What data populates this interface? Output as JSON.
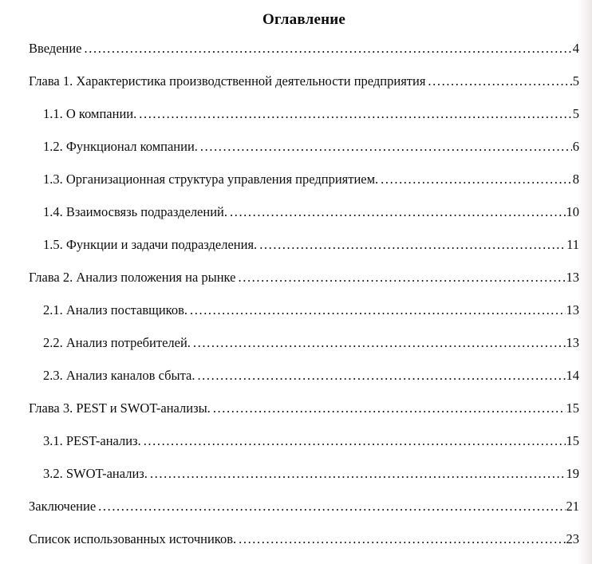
{
  "title": "Оглавление",
  "entries": [
    {
      "label": "Введение",
      "page": "4",
      "level": 0
    },
    {
      "label": "Глава 1. Характеристика производственной деятельности предприятия",
      "page": "5",
      "level": 0
    },
    {
      "label": "1.1. О компании.",
      "page": "5",
      "level": 1
    },
    {
      "label": "1.2. Функционал компании.",
      "page": "6",
      "level": 1
    },
    {
      "label": "1.3. Организационная структура управления предприятием.",
      "page": "8",
      "level": 1
    },
    {
      "label": "1.4. Взаимосвязь подразделений.",
      "page": "10",
      "level": 1
    },
    {
      "label": "1.5. Функции и задачи подразделения.",
      "page": "11",
      "level": 1
    },
    {
      "label": "Глава 2. Анализ положения на рынке",
      "page": "13",
      "level": 0
    },
    {
      "label": "2.1. Анализ поставщиков.",
      "page": "13",
      "level": 1
    },
    {
      "label": "2.2. Анализ потребителей.",
      "page": "13",
      "level": 1
    },
    {
      "label": "2.3. Анализ каналов сбыта.",
      "page": "14",
      "level": 1
    },
    {
      "label": "Глава 3. PEST и SWOT-анализы.",
      "page": "15",
      "level": 0
    },
    {
      "label": "3.1. PEST-анализ.",
      "page": "15",
      "level": 1
    },
    {
      "label": "3.2. SWOT-анализ.",
      "page": "19",
      "level": 1
    },
    {
      "label": "Заключение",
      "page": "21",
      "level": 0
    },
    {
      "label": "Список использованных источников.",
      "page": "23",
      "level": 0
    }
  ]
}
